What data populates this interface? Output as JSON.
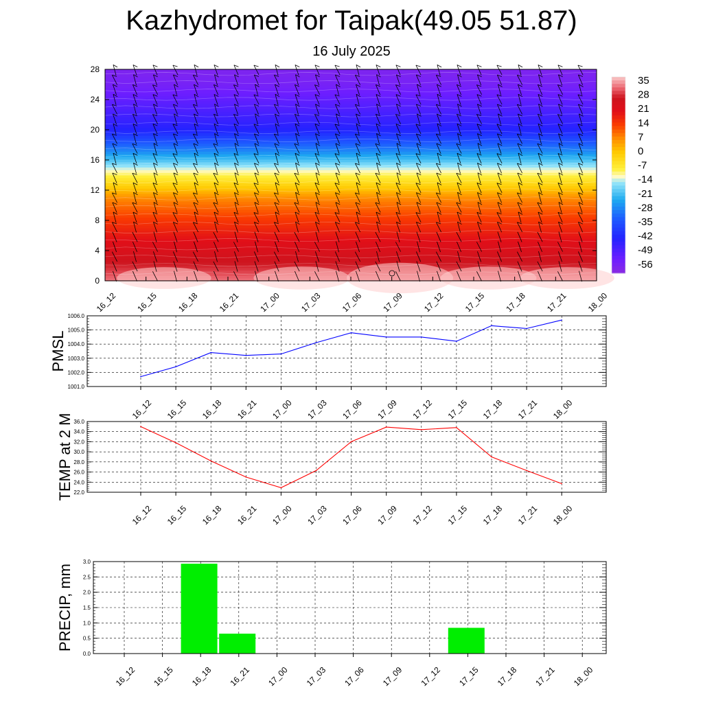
{
  "page": {
    "title": "Kazhydromet for Taipak(49.05 51.87)",
    "subtitle": "16 July 2025"
  },
  "chart_data": [
    {
      "id": "cross-section",
      "type": "heatmap",
      "x_categories": [
        "16_12",
        "16_15",
        "16_18",
        "16_21",
        "17_00",
        "17_03",
        "17_06",
        "17_09",
        "17_12",
        "17_15",
        "17_18",
        "17_21",
        "18_00"
      ],
      "yticks": [
        0,
        4,
        8,
        12,
        16,
        20,
        24,
        28
      ],
      "ylim": [
        0,
        28
      ],
      "colorbar_labels": [
        "35",
        "28",
        "21",
        "14",
        "7",
        "0",
        "-7",
        "-14",
        "-21",
        "-28",
        "-35",
        "-42",
        "-49",
        "-56"
      ],
      "colorbar_range": [
        -63,
        39
      ],
      "profile": [
        [
          0,
          34
        ],
        [
          2,
          29
        ],
        [
          4,
          24
        ],
        [
          8,
          15
        ],
        [
          11,
          7
        ],
        [
          13,
          -4
        ],
        [
          15,
          -15
        ],
        [
          17,
          -28
        ],
        [
          20,
          -45
        ],
        [
          23,
          -52
        ],
        [
          26,
          -58
        ],
        [
          28,
          -60
        ]
      ],
      "wind_barbs": true,
      "colors": {
        "hot": "#f7b0b0",
        "warm": "#e0202a",
        "orange": "#ff8000",
        "yellow": "#ffef40",
        "cyan": "#20b8f0",
        "blue": "#2020ff",
        "violet": "#8030ff"
      }
    },
    {
      "id": "pmsl",
      "type": "line",
      "ylabel": "PMSL",
      "categories": [
        "16_12",
        "16_15",
        "16_18",
        "16_21",
        "17_00",
        "17_03",
        "17_06",
        "17_09",
        "17_12",
        "17_15",
        "17_18",
        "17_21",
        "18_00"
      ],
      "values": [
        1001.7,
        1002.4,
        1003.4,
        1003.2,
        1003.3,
        1004.1,
        1004.8,
        1004.5,
        1004.5,
        1004.2,
        1005.3,
        1005.1,
        1005.7
      ],
      "yticks": [
        "1001.0",
        "1002.0",
        "1003.0",
        "1004.0",
        "1005.0",
        "1006.0"
      ],
      "ylim": [
        1001,
        1006
      ],
      "color": "#0000ff",
      "grid": true
    },
    {
      "id": "temp",
      "type": "line",
      "ylabel": "TEMP at 2 M",
      "categories": [
        "16_12",
        "16_15",
        "16_18",
        "16_21",
        "17_00",
        "17_03",
        "17_06",
        "17_09",
        "17_12",
        "17_15",
        "17_18",
        "17_21",
        "18_00"
      ],
      "values": [
        35.0,
        31.8,
        28.2,
        25.0,
        22.9,
        26.3,
        32.0,
        34.9,
        34.4,
        34.8,
        29.0,
        26.3,
        23.7
      ],
      "yticks": [
        "22.0",
        "24.0",
        "26.0",
        "28.0",
        "30.0",
        "32.0",
        "34.0",
        "36.0"
      ],
      "ylim": [
        22,
        36
      ],
      "color": "#ff0000",
      "grid": true
    },
    {
      "id": "precip",
      "type": "bar",
      "ylabel": "PRECIP, mm",
      "categories": [
        "16_12",
        "16_15",
        "16_18",
        "16_21",
        "17_00",
        "17_03",
        "17_06",
        "17_09",
        "17_12",
        "17_15",
        "17_18",
        "17_21",
        "18_00"
      ],
      "values": [
        0,
        2.93,
        0.65,
        0,
        0,
        0,
        0,
        0,
        0.84,
        0,
        0,
        0,
        0
      ],
      "yticks": [
        "0.0",
        "0.5",
        "1.0",
        "1.5",
        "2.0",
        "2.5",
        "3.0"
      ],
      "ylim": [
        0,
        3
      ],
      "color": "#00ee00",
      "grid": true
    }
  ]
}
